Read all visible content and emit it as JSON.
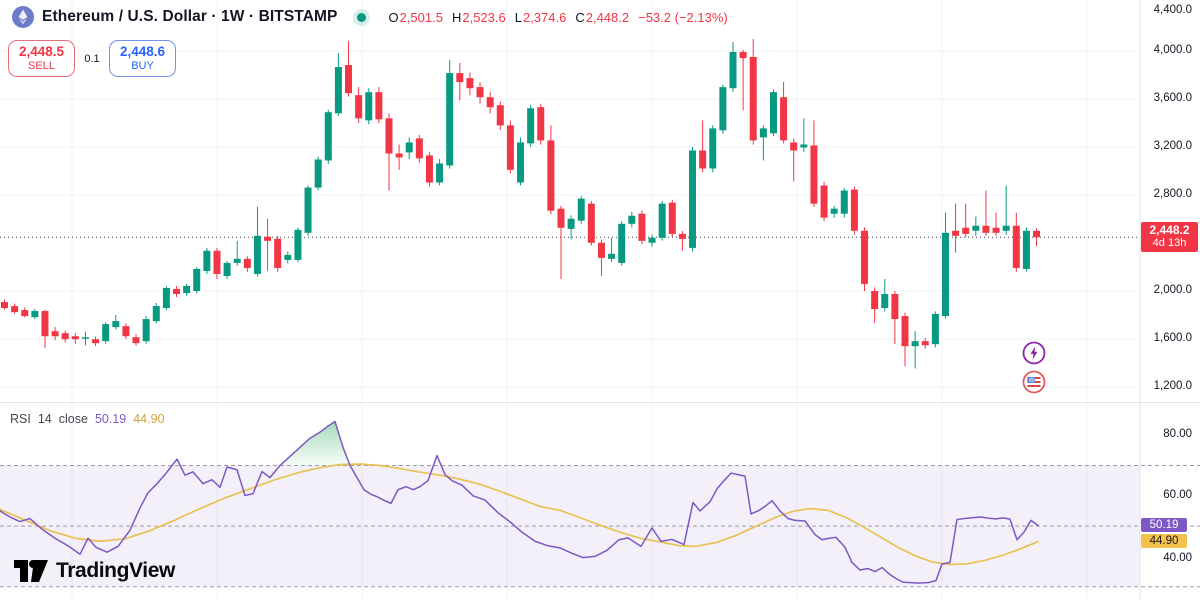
{
  "header": {
    "symbol_title": "Ethereum / U.S. Dollar · 1W · BITSTAMP",
    "market_status": "open",
    "ohlc": {
      "o_label": "O",
      "o": "2,501.5",
      "h_label": "H",
      "h": "2,523.6",
      "l_label": "L",
      "l": "2,374.6",
      "c_label": "C",
      "c": "2,448.2",
      "change": "−53.2 (−2.13%)"
    }
  },
  "trade_panel": {
    "sell_price": "2,448.5",
    "sell_label": "SELL",
    "spread": "0.1",
    "buy_price": "2,448.6",
    "buy_label": "BUY"
  },
  "price_axis": {
    "labels": [
      {
        "text": "4,400.0",
        "value": 4400
      },
      {
        "text": "4,000.0",
        "value": 4000
      },
      {
        "text": "3,600.0",
        "value": 3600
      },
      {
        "text": "3,200.0",
        "value": 3200
      },
      {
        "text": "2,800.0",
        "value": 2800
      },
      {
        "text": "2,000.0",
        "value": 2000
      },
      {
        "text": "1,600.0",
        "value": 1600
      },
      {
        "text": "1,200.0",
        "value": 1200
      }
    ],
    "last_price": "2,448.2",
    "last_price_value": 2448.2,
    "countdown": "4d 13h"
  },
  "rsi_panel": {
    "title": "RSI",
    "param": "14",
    "source": "close",
    "value": "50.19",
    "ma_value": "44.90",
    "axis_labels": [
      {
        "text": "80.00",
        "value": 80
      },
      {
        "text": "60.00",
        "value": 60
      },
      {
        "text": "40.00",
        "value": 40
      }
    ]
  },
  "logo": {
    "text": "TradingView"
  },
  "colors": {
    "up": "#089981",
    "down": "#F23645",
    "buy_blue": "#2962FF",
    "sell_red": "#F23645",
    "rsi_line": "#7E57C2",
    "rsi_ma_line": "#E8C252",
    "rsi_band_fill": "rgba(126,87,194,0.09)",
    "overbought_fill": "#22AB5C",
    "grid": "#F0F3FA",
    "dashed_level": "#9A9DA6",
    "separator": "#E0E3EB",
    "axis_text": "#131722"
  },
  "chart_data": {
    "type": "candlestick",
    "symbol": "ETHUSD",
    "timeframe": "1W",
    "exchange": "BITSTAMP",
    "price_range_shown": [
      1200,
      4400
    ],
    "grid_values": [
      4000,
      3600,
      3200,
      2800,
      2000,
      1600,
      1200
    ],
    "candles_ohlc": [
      [
        1908,
        1930,
        1845,
        1858
      ],
      [
        1874,
        1895,
        1810,
        1824
      ],
      [
        1841,
        1862,
        1778,
        1791
      ],
      [
        1782,
        1850,
        1765,
        1833
      ],
      [
        1833,
        1845,
        1523,
        1623
      ],
      [
        1665,
        1700,
        1590,
        1623
      ],
      [
        1648,
        1670,
        1570,
        1598
      ],
      [
        1623,
        1650,
        1560,
        1598
      ],
      [
        1606,
        1660,
        1548,
        1614
      ],
      [
        1598,
        1620,
        1540,
        1565
      ],
      [
        1582,
        1740,
        1560,
        1724
      ],
      [
        1699,
        1800,
        1680,
        1749
      ],
      [
        1707,
        1730,
        1600,
        1623
      ],
      [
        1615,
        1640,
        1545,
        1565
      ],
      [
        1582,
        1790,
        1560,
        1766
      ],
      [
        1749,
        1900,
        1730,
        1875
      ],
      [
        1858,
        2040,
        1840,
        2025
      ],
      [
        2017,
        2040,
        1950,
        1975
      ],
      [
        1983,
        2060,
        1960,
        2042
      ],
      [
        2000,
        2200,
        1980,
        2184
      ],
      [
        2167,
        2360,
        2140,
        2335
      ],
      [
        2335,
        2360,
        2100,
        2142
      ],
      [
        2125,
        2250,
        2100,
        2234
      ],
      [
        2234,
        2418,
        2210,
        2268
      ],
      [
        2268,
        2290,
        2160,
        2192
      ],
      [
        2142,
        2702,
        2120,
        2460
      ],
      [
        2452,
        2602,
        2167,
        2418
      ],
      [
        2435,
        2460,
        2160,
        2192
      ],
      [
        2259,
        2330,
        2230,
        2301
      ],
      [
        2259,
        2530,
        2240,
        2510
      ],
      [
        2485,
        2880,
        2460,
        2862
      ],
      [
        2862,
        3120,
        2840,
        3096
      ],
      [
        3088,
        3510,
        3060,
        3490
      ],
      [
        3481,
        3983,
        3460,
        3866
      ],
      [
        3883,
        4084,
        3620,
        3649
      ],
      [
        3632,
        3700,
        3400,
        3439
      ],
      [
        3422,
        3690,
        3390,
        3657
      ],
      [
        3657,
        3700,
        3400,
        3431
      ],
      [
        3439,
        3480,
        2837,
        3146
      ],
      [
        3146,
        3220,
        3010,
        3113
      ],
      [
        3155,
        3280,
        3100,
        3238
      ],
      [
        3272,
        3300,
        3070,
        3105
      ],
      [
        3130,
        3160,
        2870,
        2904
      ],
      [
        2904,
        3100,
        2880,
        3063
      ],
      [
        3046,
        3925,
        3020,
        3816
      ],
      [
        3816,
        3900,
        3590,
        3741
      ],
      [
        3774,
        3820,
        3630,
        3690
      ],
      [
        3699,
        3740,
        3560,
        3615
      ],
      [
        3615,
        3660,
        3480,
        3531
      ],
      [
        3548,
        3580,
        3340,
        3380
      ],
      [
        3380,
        3420,
        2980,
        3010
      ],
      [
        2904,
        3280,
        2880,
        3238
      ],
      [
        3230,
        3550,
        3200,
        3523
      ],
      [
        3532,
        3560,
        3220,
        3255
      ],
      [
        3255,
        3380,
        2640,
        2669
      ],
      [
        2686,
        2710,
        2100,
        2527
      ],
      [
        2518,
        2630,
        2430,
        2602
      ],
      [
        2586,
        2790,
        2560,
        2770
      ],
      [
        2728,
        2750,
        2380,
        2402
      ],
      [
        2402,
        2430,
        2125,
        2276
      ],
      [
        2268,
        2443,
        2240,
        2310
      ],
      [
        2234,
        2580,
        2210,
        2560
      ],
      [
        2560,
        2660,
        2530,
        2627
      ],
      [
        2644,
        2670,
        2390,
        2418
      ],
      [
        2402,
        2470,
        2370,
        2444
      ],
      [
        2443,
        2750,
        2420,
        2728
      ],
      [
        2736,
        2760,
        2450,
        2476
      ],
      [
        2476,
        2500,
        2335,
        2434
      ],
      [
        2359,
        3200,
        2330,
        3171
      ],
      [
        3171,
        3422,
        2990,
        3021
      ],
      [
        3021,
        3380,
        2990,
        3355
      ],
      [
        3339,
        3720,
        3310,
        3699
      ],
      [
        3690,
        4075,
        3660,
        3992
      ],
      [
        3992,
        4010,
        3506,
        3941
      ],
      [
        3950,
        4100,
        3220,
        3255
      ],
      [
        3280,
        3380,
        3088,
        3355
      ],
      [
        3314,
        3680,
        3290,
        3657
      ],
      [
        3615,
        3741,
        3230,
        3255
      ],
      [
        3238,
        3270,
        2912,
        3171
      ],
      [
        3196,
        3439,
        3160,
        3221
      ],
      [
        3213,
        3422,
        2700,
        2728
      ],
      [
        2879,
        2910,
        2580,
        2611
      ],
      [
        2644,
        2710,
        2610,
        2686
      ],
      [
        2644,
        2860,
        2610,
        2837
      ],
      [
        2845,
        2870,
        2470,
        2502
      ],
      [
        2502,
        2530,
        2000,
        2059
      ],
      [
        2000,
        2030,
        1732,
        1849
      ],
      [
        1858,
        2100,
        1830,
        1975
      ],
      [
        1975,
        2000,
        1557,
        1766
      ],
      [
        1791,
        1820,
        1372,
        1540
      ],
      [
        1540,
        1665,
        1355,
        1582
      ],
      [
        1582,
        1610,
        1520,
        1548
      ],
      [
        1557,
        1830,
        1530,
        1808
      ],
      [
        1791,
        2652,
        1770,
        2485
      ],
      [
        2502,
        2728,
        2318,
        2460
      ],
      [
        2527,
        2728,
        2450,
        2476
      ],
      [
        2502,
        2620,
        2460,
        2544
      ],
      [
        2544,
        2837,
        2460,
        2485
      ],
      [
        2527,
        2652,
        2460,
        2485
      ],
      [
        2502,
        2879,
        2470,
        2544
      ],
      [
        2544,
        2652,
        2160,
        2192
      ],
      [
        2184,
        2530,
        2160,
        2502
      ],
      [
        2501.5,
        2523.6,
        2374.6,
        2448.2
      ]
    ],
    "rsi": {
      "period": 14,
      "source": "close",
      "levels": [
        70,
        50,
        30
      ],
      "last_value": 50.19,
      "ma_last_value": 44.9,
      "line_points": [
        [
          0,
          55
        ],
        [
          10,
          53
        ],
        [
          20,
          51.5
        ],
        [
          30,
          52.5
        ],
        [
          42,
          49
        ],
        [
          55,
          46
        ],
        [
          68,
          43.5
        ],
        [
          80,
          40.7
        ],
        [
          88,
          46
        ],
        [
          96,
          43
        ],
        [
          107,
          41.4
        ],
        [
          118,
          43.3
        ],
        [
          130,
          48.6
        ],
        [
          140,
          56
        ],
        [
          148,
          61
        ],
        [
          157,
          64
        ],
        [
          165,
          67
        ],
        [
          177,
          72.1
        ],
        [
          185,
          66.8
        ],
        [
          193,
          67.9
        ],
        [
          203,
          64
        ],
        [
          212,
          65.3
        ],
        [
          220,
          62.8
        ],
        [
          227,
          69.5
        ],
        [
          237,
          68.6
        ],
        [
          245,
          60.1
        ],
        [
          253,
          60.7
        ],
        [
          262,
          68
        ],
        [
          270,
          66
        ],
        [
          280,
          70
        ],
        [
          290,
          73
        ],
        [
          300,
          76
        ],
        [
          310,
          79
        ],
        [
          320,
          81
        ],
        [
          328,
          83
        ],
        [
          335,
          84.5
        ],
        [
          343,
          76
        ],
        [
          350,
          70
        ],
        [
          357,
          66
        ],
        [
          364,
          62
        ],
        [
          371,
          60.5
        ],
        [
          377,
          59.7
        ],
        [
          384,
          58.5
        ],
        [
          391,
          57.5
        ],
        [
          398,
          62
        ],
        [
          406,
          63
        ],
        [
          413,
          62
        ],
        [
          420,
          63
        ],
        [
          428,
          65
        ],
        [
          437,
          73.3
        ],
        [
          445,
          67
        ],
        [
          452,
          65
        ],
        [
          462,
          63.5
        ],
        [
          473,
          60
        ],
        [
          485,
          58.6
        ],
        [
          498,
          54.4
        ],
        [
          510,
          51.4
        ],
        [
          522,
          48
        ],
        [
          535,
          45
        ],
        [
          548,
          43.5
        ],
        [
          560,
          42.8
        ],
        [
          572,
          41
        ],
        [
          583,
          39.6
        ],
        [
          595,
          40
        ],
        [
          607,
          42
        ],
        [
          619,
          45.5
        ],
        [
          628,
          46.1
        ],
        [
          641,
          43.3
        ],
        [
          652,
          49.4
        ],
        [
          661,
          45
        ],
        [
          672,
          45.6
        ],
        [
          684,
          43.9
        ],
        [
          693,
          57.8
        ],
        [
          700,
          55
        ],
        [
          710,
          58
        ],
        [
          717,
          62.3
        ],
        [
          724,
          65
        ],
        [
          731,
          67.5
        ],
        [
          738,
          67
        ],
        [
          745,
          66.5
        ],
        [
          751,
          54
        ],
        [
          758,
          55
        ],
        [
          765,
          56.5
        ],
        [
          772,
          58.4
        ],
        [
          780,
          55
        ],
        [
          788,
          52.5
        ],
        [
          795,
          51.9
        ],
        [
          805,
          51.7
        ],
        [
          815,
          47.2
        ],
        [
          822,
          45.5
        ],
        [
          828,
          45.9
        ],
        [
          836,
          46.3
        ],
        [
          845,
          43
        ],
        [
          852,
          38
        ],
        [
          860,
          35.5
        ],
        [
          868,
          36
        ],
        [
          875,
          35
        ],
        [
          882,
          36.3
        ],
        [
          890,
          34
        ],
        [
          897,
          32.5
        ],
        [
          903,
          31.5
        ],
        [
          912,
          31.3
        ],
        [
          920,
          31.2
        ],
        [
          929,
          31.4
        ],
        [
          936,
          32
        ],
        [
          942,
          37.5
        ],
        [
          950,
          38
        ],
        [
          957,
          52.2
        ],
        [
          965,
          52.5
        ],
        [
          973,
          52.8
        ],
        [
          981,
          53
        ],
        [
          989,
          52.6
        ],
        [
          996,
          52.4
        ],
        [
          1003,
          52.7
        ],
        [
          1010,
          52.3
        ],
        [
          1017,
          45.5
        ],
        [
          1024,
          48
        ],
        [
          1031,
          51.9
        ],
        [
          1038,
          50.19
        ]
      ],
      "ma_points": [
        [
          0,
          55.5
        ],
        [
          25,
          52
        ],
        [
          50,
          48.5
        ],
        [
          75,
          46
        ],
        [
          100,
          45
        ],
        [
          125,
          45.8
        ],
        [
          150,
          48.5
        ],
        [
          175,
          52
        ],
        [
          200,
          55.8
        ],
        [
          225,
          59.3
        ],
        [
          250,
          62.3
        ],
        [
          275,
          65.3
        ],
        [
          300,
          67.8
        ],
        [
          320,
          69.3
        ],
        [
          340,
          70.3
        ],
        [
          360,
          70.5
        ],
        [
          380,
          70
        ],
        [
          400,
          69
        ],
        [
          420,
          67.8
        ],
        [
          440,
          66.8
        ],
        [
          460,
          65.5
        ],
        [
          480,
          63.8
        ],
        [
          500,
          61.5
        ],
        [
          520,
          59
        ],
        [
          540,
          56.5
        ],
        [
          560,
          55.2
        ],
        [
          580,
          52.8
        ],
        [
          600,
          50.3
        ],
        [
          620,
          48
        ],
        [
          640,
          46
        ],
        [
          660,
          44.8
        ],
        [
          680,
          43.5
        ],
        [
          695,
          43.3
        ],
        [
          715,
          44.5
        ],
        [
          735,
          46.8
        ],
        [
          755,
          49.8
        ],
        [
          775,
          52.8
        ],
        [
          792,
          54.8
        ],
        [
          810,
          55.8
        ],
        [
          828,
          55.2
        ],
        [
          845,
          53
        ],
        [
          862,
          50
        ],
        [
          880,
          46.5
        ],
        [
          898,
          43
        ],
        [
          915,
          40.2
        ],
        [
          932,
          38.2
        ],
        [
          950,
          37.3
        ],
        [
          968,
          37.6
        ],
        [
          985,
          38.7
        ],
        [
          1002,
          40.3
        ],
        [
          1019,
          42.3
        ],
        [
          1038,
          44.9
        ]
      ]
    }
  }
}
